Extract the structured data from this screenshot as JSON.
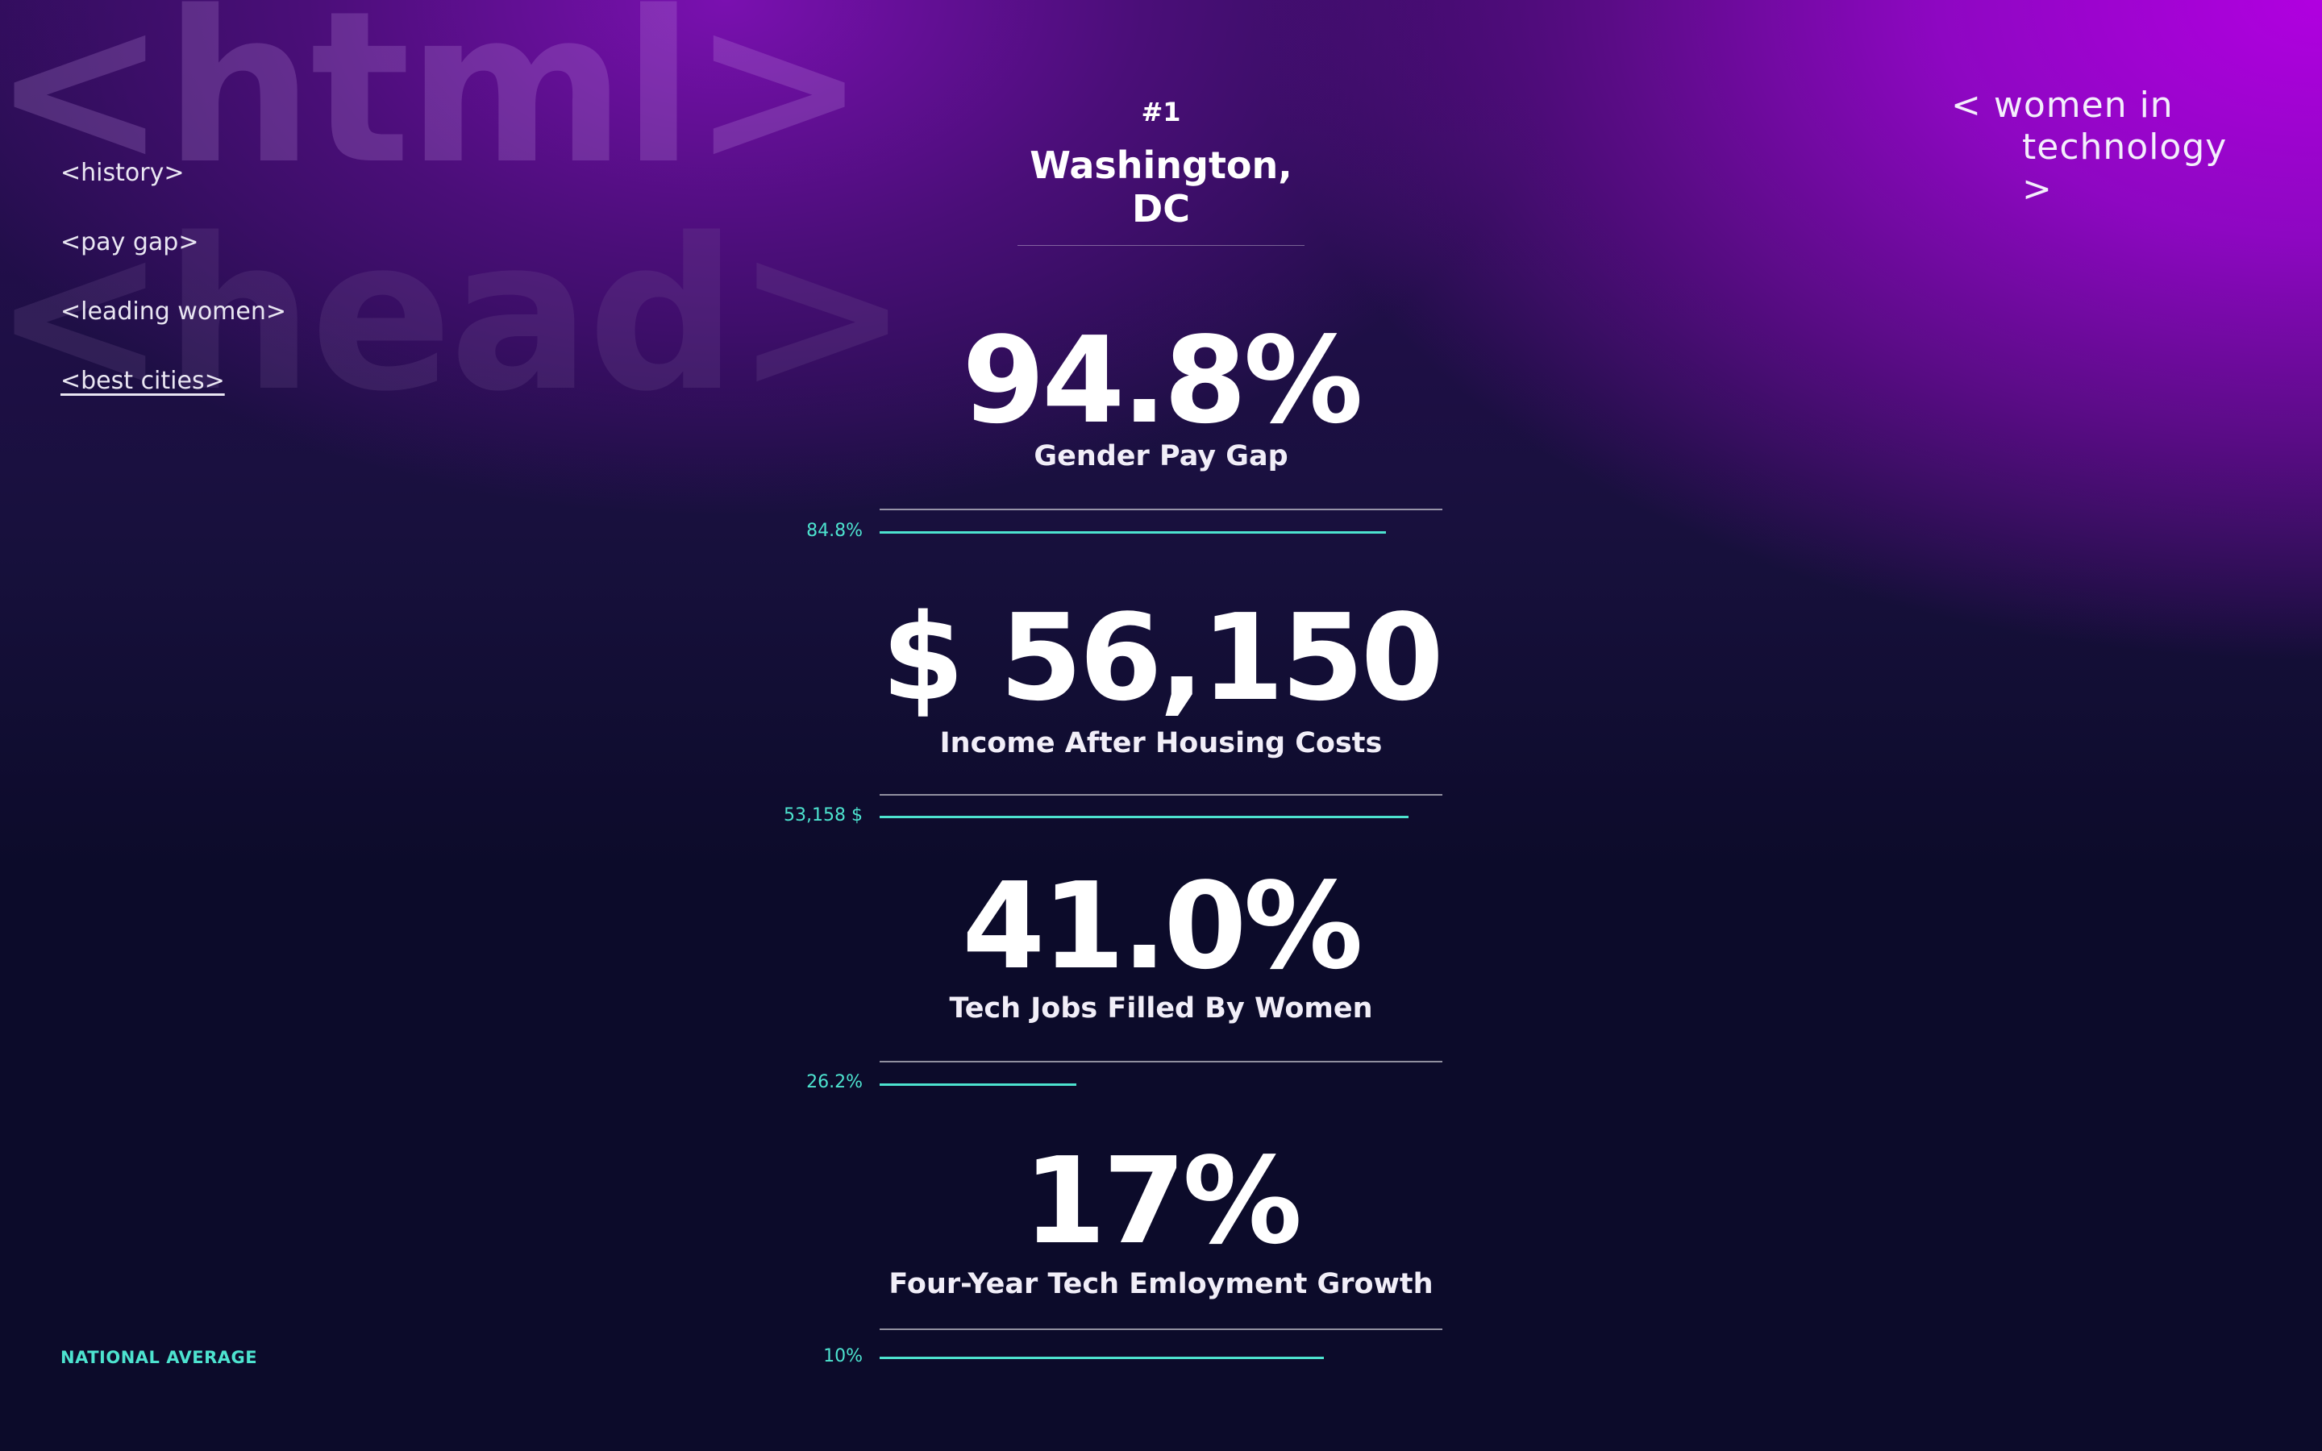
{
  "background_words": [
    "<html>",
    "<head>"
  ],
  "nav": [
    {
      "label": "<history>",
      "active": false
    },
    {
      "label": "<pay gap>",
      "active": false
    },
    {
      "label": "<leading women>",
      "active": false
    },
    {
      "label": "<best cities>",
      "active": true
    }
  ],
  "brand": {
    "line1": "< women in",
    "line2": "technology >"
  },
  "city": {
    "rank": "#1",
    "name": "Washington, DC"
  },
  "stats": [
    {
      "value": "94.8%",
      "label": "Gender Pay Gap",
      "national_avg": "84.8%",
      "bar_fraction": 0.9
    },
    {
      "value": "$ 56,150",
      "label": "Income After Housing Costs",
      "national_avg": "53,158 $",
      "bar_fraction": 0.94
    },
    {
      "value": "41.0%",
      "label": "Tech Jobs Filled By Women",
      "national_avg": "26.2%",
      "bar_fraction": 0.35
    },
    {
      "value": "17%",
      "label": "Four-Year Tech Emloyment Growth",
      "national_avg": "10%",
      "bar_fraction": 0.79
    }
  ],
  "national_average_label": "NATIONAL AVERAGE",
  "colors": {
    "accent": "#4de3cf",
    "background": "#0c0b2a",
    "gradient_top": "#b100e0"
  }
}
